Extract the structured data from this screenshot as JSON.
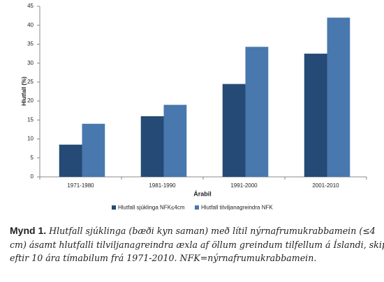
{
  "chart_data": {
    "type": "bar",
    "ylabel": "Hlutfall (%)",
    "xlabel": "Árabil",
    "categories": [
      "1971-1980",
      "1981-1990",
      "1991-2000",
      "2001-2010"
    ],
    "series": [
      {
        "name": "Hlutfall sjúklinga NFK≤4cm",
        "color": "#254a75",
        "values": [
          8.5,
          16,
          24.5,
          32.5
        ]
      },
      {
        "name": "Hlutfall tilviljanagreindra NFK",
        "color": "#4878ad",
        "values": [
          14,
          19,
          34.3,
          42
        ]
      }
    ],
    "ylim": [
      0,
      45
    ],
    "yticks": [
      0,
      5,
      10,
      15,
      20,
      25,
      30,
      35,
      40,
      45
    ],
    "grid": false,
    "legend": "bottom"
  },
  "caption": {
    "label": "Mynd 1.",
    "lines": [
      "Hlutfall sjúklinga (bæði kyn saman) með lítil nýrnafrumukrabbamein (≤4",
      "cm) ásamt hlutfalli tilviljanagreindra æxla af öllum greindum tilfellum á Íslandi, skipt",
      "eftir 10 ára tímabilum frá 1971-2010. NFK=nýrnafrumukrabbamein."
    ]
  }
}
